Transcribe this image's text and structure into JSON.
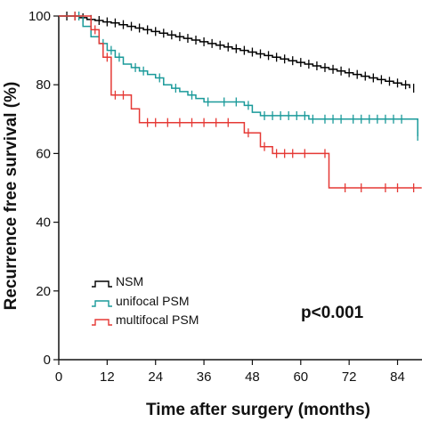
{
  "chart_data": {
    "type": "line",
    "subtype": "kaplan-meier",
    "title": "",
    "xlabel": "Time after surgery (months)",
    "ylabel": "Recurrence free survival (%)",
    "xlim": [
      0,
      90
    ],
    "ylim": [
      0,
      100
    ],
    "x_ticks": [
      "0",
      "12",
      "24",
      "36",
      "48",
      "60",
      "72",
      "84"
    ],
    "y_ticks": [
      "0",
      "20",
      "40",
      "60",
      "80",
      "100"
    ],
    "grid": false,
    "legend_position": "bottom-left",
    "annotation": "p<0.001",
    "series": [
      {
        "name": "NSM",
        "color": "#000000",
        "steps": [
          [
            0,
            100
          ],
          [
            3,
            100
          ],
          [
            5,
            99.5
          ],
          [
            7,
            99
          ],
          [
            9,
            98.7
          ],
          [
            11,
            98.3
          ],
          [
            13,
            98
          ],
          [
            15,
            97.5
          ],
          [
            17,
            97
          ],
          [
            19,
            96.5
          ],
          [
            21,
            96
          ],
          [
            23,
            95.5
          ],
          [
            25,
            95
          ],
          [
            27,
            94.5
          ],
          [
            29,
            94
          ],
          [
            31,
            93.5
          ],
          [
            33,
            93
          ],
          [
            35,
            92.5
          ],
          [
            37,
            92
          ],
          [
            39,
            91.5
          ],
          [
            41,
            91
          ],
          [
            43,
            90.5
          ],
          [
            45,
            90
          ],
          [
            47,
            89.5
          ],
          [
            49,
            89
          ],
          [
            51,
            88.5
          ],
          [
            53,
            88
          ],
          [
            55,
            87.5
          ],
          [
            57,
            87
          ],
          [
            59,
            86.5
          ],
          [
            61,
            86
          ],
          [
            63,
            85.5
          ],
          [
            65,
            85
          ],
          [
            67,
            84.5
          ],
          [
            69,
            84
          ],
          [
            71,
            83.5
          ],
          [
            73,
            83
          ],
          [
            75,
            82.5
          ],
          [
            77,
            82
          ],
          [
            79,
            81.5
          ],
          [
            81,
            81
          ],
          [
            83,
            80.5
          ],
          [
            85,
            80
          ],
          [
            87,
            79
          ]
        ],
        "censor_x": [
          2,
          4,
          6,
          8,
          10,
          12,
          14,
          16,
          18,
          20,
          22,
          24,
          26,
          28,
          30,
          32,
          34,
          36,
          38,
          40,
          42,
          44,
          46,
          48,
          50,
          52,
          54,
          56,
          58,
          60,
          62,
          64,
          66,
          68,
          70,
          72,
          74,
          76,
          78,
          80,
          82,
          84,
          86,
          88
        ]
      },
      {
        "name": "unifocal PSM",
        "color": "#1a9a9a",
        "steps": [
          [
            0,
            100
          ],
          [
            4,
            100
          ],
          [
            6,
            97
          ],
          [
            8,
            94
          ],
          [
            10,
            92
          ],
          [
            12,
            90
          ],
          [
            14,
            88
          ],
          [
            16,
            86
          ],
          [
            18,
            85
          ],
          [
            20,
            84
          ],
          [
            22,
            83
          ],
          [
            24,
            82
          ],
          [
            26,
            80
          ],
          [
            28,
            79
          ],
          [
            30,
            78
          ],
          [
            32,
            77
          ],
          [
            34,
            76
          ],
          [
            36,
            75
          ],
          [
            40,
            75
          ],
          [
            46,
            74
          ],
          [
            48,
            72
          ],
          [
            50,
            71
          ],
          [
            60,
            71
          ],
          [
            62,
            70
          ],
          [
            88,
            70
          ],
          [
            89,
            65
          ]
        ],
        "censor_x": [
          5,
          11,
          13,
          15,
          19,
          21,
          25,
          29,
          33,
          37,
          41,
          44,
          47,
          51,
          53,
          55,
          57,
          59,
          61,
          63,
          66,
          68,
          70,
          73,
          75,
          77,
          79,
          81,
          83,
          85,
          89
        ]
      },
      {
        "name": "multifocal PSM",
        "color": "#e53935",
        "steps": [
          [
            0,
            100
          ],
          [
            7,
            100
          ],
          [
            8,
            96
          ],
          [
            10,
            92
          ],
          [
            11,
            88
          ],
          [
            13,
            77
          ],
          [
            17,
            77
          ],
          [
            18,
            73
          ],
          [
            20,
            69
          ],
          [
            44,
            69
          ],
          [
            46,
            66
          ],
          [
            50,
            62
          ],
          [
            53,
            60
          ],
          [
            62,
            60
          ],
          [
            67,
            50
          ],
          [
            90,
            50
          ]
        ],
        "censor_x": [
          4,
          9,
          12,
          14,
          16,
          22,
          24,
          27,
          30,
          33,
          36,
          39,
          42,
          47,
          51,
          54,
          56,
          58,
          61,
          66,
          71,
          75,
          81,
          84,
          88
        ]
      }
    ]
  }
}
